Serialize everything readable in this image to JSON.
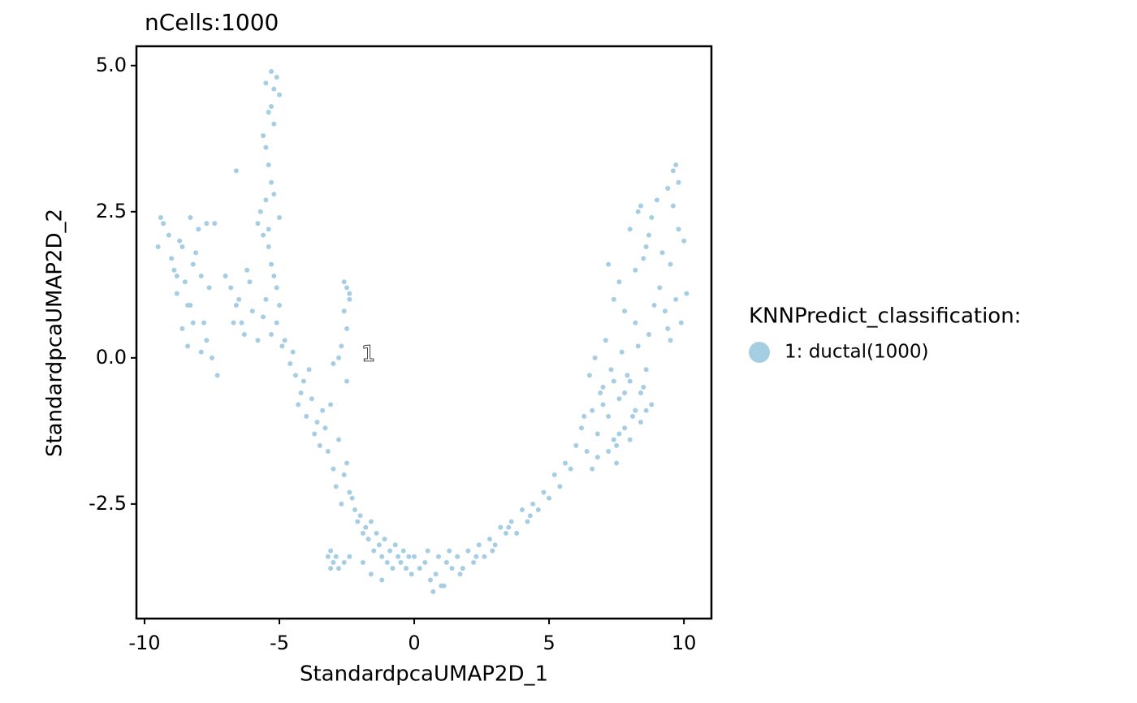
{
  "chart_data": {
    "type": "scatter",
    "title": "nCells:1000",
    "xlabel": "StandardpcaUMAP2D_1",
    "ylabel": "StandardpcaUMAP2D_2",
    "legend_title": "KNNPredict_classification:",
    "annotations": [
      {
        "text": "1",
        "x": -1.7,
        "y": 0.05
      }
    ],
    "xlim": [
      -10.3,
      11.02
    ],
    "ylim": [
      -4.46,
      5.33
    ],
    "xticks": [
      -10,
      -5,
      0,
      5,
      10
    ],
    "yticks": [
      {
        "value": -2.5,
        "label": "-2.5"
      },
      {
        "value": 0,
        "label": "0.0"
      },
      {
        "value": 2.5,
        "label": "2.5"
      },
      {
        "value": 5,
        "label": "5.0"
      }
    ],
    "grid": false,
    "legend_position": "right",
    "series": [
      {
        "name": "1: ductal(1000)",
        "color": "#a6cee3",
        "x": [
          -9.5,
          -9.3,
          -9.1,
          -8.9,
          -8.7,
          -8.5,
          -8.3,
          -8.1,
          -7.9,
          -7.7,
          -9.4,
          -9.0,
          -8.8,
          -8.6,
          -8.4,
          -8.2,
          -8.0,
          -7.8,
          -7.6,
          -7.4,
          -8.6,
          -8.4,
          -8.2,
          -7.9,
          -7.5,
          -8.8,
          -8.3,
          -7.7,
          -7.3,
          -7.0,
          -6.8,
          -6.6,
          -6.4,
          -6.2,
          -6.0,
          -6.7,
          -6.5,
          -6.3,
          -6.1,
          -5.8,
          -5.5,
          -5.3,
          -5.2,
          -5.1,
          -5.0,
          -5.4,
          -5.3,
          -5.2,
          -5.5,
          -5.6,
          -5.4,
          -5.3,
          -5.5,
          -5.7,
          -5.8,
          -5.6,
          -5.2,
          -5.0,
          -5.4,
          -5.3,
          -5.1,
          -5.0,
          -5.2,
          -5.5,
          -5.6,
          -5.3,
          -4.9,
          -5.1,
          -5.4,
          -6.6,
          -4.8,
          -4.6,
          -4.4,
          -4.2,
          -4.5,
          -4.3,
          -4.1,
          -3.9,
          -4.0,
          -3.8,
          -3.6,
          -3.4,
          -3.7,
          -3.5,
          -3.3,
          -3.1,
          -3.2,
          -3.0,
          -2.8,
          -2.6,
          -2.9,
          -2.7,
          -2.5,
          -2.4,
          -2.3,
          -2.2,
          -2.1,
          -2.0,
          -1.9,
          -1.8,
          -1.7,
          -1.6,
          -1.5,
          -1.4,
          -1.3,
          -1.2,
          -1.1,
          -1.0,
          -0.9,
          -0.8,
          -0.7,
          -0.6,
          -0.5,
          -0.4,
          -0.3,
          -0.2,
          -0.1,
          -1.9,
          -1.6,
          -1.2,
          -3.2,
          -3.1,
          -3.0,
          -2.9,
          -2.8,
          -3.1,
          -2.6,
          -2.4,
          -2.6,
          -2.5,
          -2.4,
          -2.6,
          -2.5,
          -2.7,
          -2.8,
          -3.0,
          -2.5,
          -2.4,
          0.0,
          0.2,
          0.4,
          0.6,
          0.8,
          1.0,
          1.2,
          1.4,
          1.6,
          1.8,
          2.0,
          2.2,
          2.4,
          2.6,
          2.8,
          3.0,
          3.2,
          3.4,
          3.6,
          3.8,
          4.0,
          4.2,
          4.4,
          4.6,
          4.8,
          5.0,
          5.2,
          5.4,
          5.6,
          5.8,
          0.5,
          0.9,
          1.3,
          0.7,
          1.1,
          1.7,
          2.3,
          2.9,
          3.5,
          4.3,
          6.0,
          6.2,
          6.4,
          6.6,
          6.8,
          7.0,
          7.2,
          7.4,
          7.6,
          7.8,
          8.0,
          8.2,
          8.4,
          8.6,
          8.8,
          6.5,
          6.7,
          6.9,
          7.1,
          7.3,
          7.5,
          7.7,
          7.9,
          8.1,
          8.3,
          8.5,
          6.3,
          6.8,
          7.2,
          7.6,
          8.0,
          8.4,
          8.7,
          7.0,
          7.4,
          7.8,
          8.2,
          6.6,
          7.5,
          8.6,
          7.2,
          7.4,
          7.6,
          7.8,
          8.0,
          8.2,
          8.4,
          8.6,
          8.8,
          9.0,
          9.2,
          9.4,
          9.6,
          9.8,
          10.0,
          9.1,
          9.3,
          9.5,
          9.7,
          9.9,
          8.3,
          8.5,
          8.7,
          8.9,
          9.6,
          9.8,
          10.1,
          9.4,
          9.7,
          9.5
        ],
        "y": [
          1.9,
          2.3,
          2.1,
          1.5,
          2.0,
          1.3,
          2.4,
          1.8,
          1.4,
          2.3,
          2.4,
          1.7,
          1.1,
          1.9,
          0.9,
          1.6,
          2.2,
          0.6,
          1.2,
          2.3,
          0.5,
          0.2,
          0.6,
          0.1,
          0.0,
          1.4,
          0.9,
          0.3,
          -0.3,
          1.4,
          1.2,
          0.9,
          0.6,
          1.5,
          0.8,
          0.6,
          1.0,
          0.4,
          1.3,
          0.3,
          4.7,
          4.9,
          4.6,
          4.8,
          4.5,
          4.2,
          4.3,
          4.0,
          3.6,
          3.8,
          3.3,
          3.0,
          2.7,
          2.5,
          2.3,
          2.1,
          2.8,
          2.4,
          1.9,
          1.6,
          1.2,
          0.9,
          1.4,
          1.0,
          0.7,
          0.4,
          0.2,
          0.6,
          2.2,
          3.2,
          0.3,
          -0.1,
          -0.3,
          -0.6,
          0.1,
          -0.8,
          -0.4,
          -0.2,
          -1.0,
          -0.7,
          -1.1,
          -0.9,
          -1.3,
          -1.5,
          -1.2,
          -0.8,
          -1.6,
          -1.9,
          -1.4,
          -2.0,
          -2.2,
          -2.5,
          -1.8,
          -2.3,
          -2.4,
          -2.6,
          -2.8,
          -2.7,
          -3.0,
          -2.9,
          -3.1,
          -2.8,
          -3.3,
          -3.0,
          -3.2,
          -3.4,
          -3.1,
          -3.5,
          -3.3,
          -3.6,
          -3.2,
          -3.4,
          -3.5,
          -3.3,
          -3.6,
          -3.4,
          -3.7,
          -3.5,
          -3.7,
          -3.8,
          -3.4,
          -3.6,
          -3.5,
          -3.4,
          -3.6,
          -3.3,
          -3.5,
          -3.4,
          1.3,
          1.2,
          1.0,
          0.8,
          0.5,
          0.2,
          0.0,
          -0.1,
          -0.4,
          1.1,
          -3.4,
          -3.6,
          -3.5,
          -3.8,
          -3.7,
          -3.9,
          -3.5,
          -3.6,
          -3.4,
          -3.6,
          -3.3,
          -3.5,
          -3.2,
          -3.4,
          -3.1,
          -3.2,
          -2.9,
          -3.0,
          -2.8,
          -3.0,
          -2.6,
          -2.8,
          -2.5,
          -2.6,
          -2.3,
          -2.4,
          -2.0,
          -2.2,
          -1.8,
          -1.9,
          -3.3,
          -3.4,
          -3.3,
          -4.0,
          -3.9,
          -3.7,
          -3.4,
          -3.3,
          -2.9,
          -2.7,
          -1.5,
          -1.2,
          -1.6,
          -0.9,
          -1.3,
          -0.5,
          -1.0,
          -1.4,
          -0.7,
          -1.2,
          -0.4,
          -0.9,
          -0.6,
          -0.2,
          -0.8,
          -0.3,
          0.0,
          -0.6,
          0.3,
          -0.2,
          -1.5,
          0.1,
          -0.3,
          -1.0,
          0.2,
          -0.5,
          -1.0,
          -1.7,
          -1.6,
          -1.3,
          -1.4,
          -1.1,
          0.4,
          -0.8,
          -0.4,
          -0.6,
          0.6,
          -1.9,
          -1.8,
          -0.9,
          1.6,
          1.0,
          1.3,
          0.8,
          2.2,
          1.5,
          2.6,
          1.9,
          2.4,
          2.7,
          1.8,
          2.9,
          3.2,
          3.0,
          2.0,
          1.2,
          0.8,
          1.6,
          1.0,
          0.6,
          2.5,
          1.7,
          2.1,
          0.9,
          2.6,
          2.2,
          1.1,
          0.5,
          3.3,
          0.3
        ]
      }
    ]
  }
}
